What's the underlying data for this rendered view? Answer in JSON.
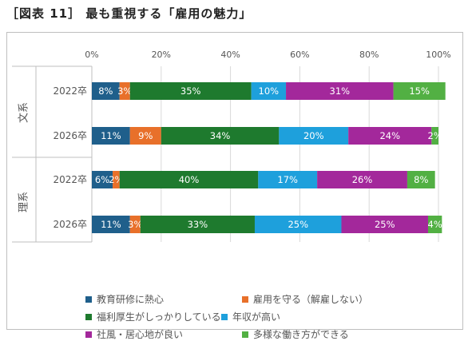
{
  "figure_title": "［図表 11］ 最も重視する「雇用の魅力」",
  "chart_data": {
    "type": "bar",
    "orientation": "horizontal",
    "stacked": true,
    "groups": [
      {
        "label": "文系",
        "rows": [
          "2022卒",
          "2026卒"
        ]
      },
      {
        "label": "理系",
        "rows": [
          "2022卒",
          "2026卒"
        ]
      }
    ],
    "categories": [
      "2022卒",
      "2026卒",
      "2022卒",
      "2026卒"
    ],
    "xlim": [
      0,
      100
    ],
    "xticks": [
      "0%",
      "20%",
      "40%",
      "60%",
      "80%",
      "100%"
    ],
    "grid": true,
    "legend_position": "bottom",
    "series": [
      {
        "name": "教育研修に熱心",
        "color": "#1f5f8b",
        "values": [
          8,
          11,
          6,
          11
        ],
        "labels": [
          "8%",
          "11%",
          "6%",
          "11%"
        ]
      },
      {
        "name": "雇用を守る（解雇しない）",
        "color": "#e8702a",
        "values": [
          3,
          9,
          2,
          3
        ],
        "labels": [
          "3%",
          "9%",
          "2%",
          "3%"
        ]
      },
      {
        "name": "福利厚生がしっかりしている",
        "color": "#1e7a2e",
        "values": [
          35,
          34,
          40,
          33
        ],
        "labels": [
          "35%",
          "34%",
          "40%",
          "33%"
        ]
      },
      {
        "name": "年収が高い",
        "color": "#1ea0dc",
        "values": [
          10,
          20,
          17,
          25
        ],
        "labels": [
          "10%",
          "20%",
          "17%",
          "25%"
        ]
      },
      {
        "name": "社風・居心地が良い",
        "color": "#a3289b",
        "values": [
          31,
          24,
          26,
          25
        ],
        "labels": [
          "31%",
          "24%",
          "26%",
          "25%"
        ]
      },
      {
        "name": "多様な働き方ができる",
        "color": "#52b043",
        "values": [
          15,
          2,
          8,
          4
        ],
        "labels": [
          "15%",
          "2%",
          "8%",
          "4%"
        ]
      }
    ]
  }
}
